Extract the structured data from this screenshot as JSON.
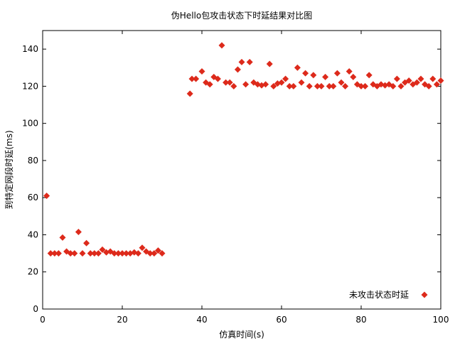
{
  "chart_data": {
    "type": "scatter",
    "title": "伪Hello包攻击状态下时延结果对比图",
    "xlabel": "仿真时间(s)",
    "ylabel": "到特定网段时延(ms)",
    "xlim": [
      0,
      100
    ],
    "ylim": [
      0,
      150
    ],
    "xticks": [
      0,
      20,
      40,
      60,
      80,
      100
    ],
    "yticks": [
      0,
      20,
      40,
      60,
      80,
      100,
      120,
      140
    ],
    "grid": false,
    "legend_position": "bottom-right",
    "series": [
      {
        "name": "未攻击状态时延",
        "color": "#dd2a1b",
        "marker": "diamond",
        "points": [
          [
            1,
            61
          ],
          [
            2,
            30
          ],
          [
            3,
            30
          ],
          [
            4,
            30
          ],
          [
            5,
            38.5
          ],
          [
            6,
            31
          ],
          [
            7,
            30
          ],
          [
            8,
            30
          ],
          [
            9,
            41.5
          ],
          [
            10,
            30
          ],
          [
            11,
            35.5
          ],
          [
            12,
            30
          ],
          [
            13,
            30
          ],
          [
            14,
            30
          ],
          [
            15,
            32
          ],
          [
            16,
            30.5
          ],
          [
            17,
            31
          ],
          [
            18,
            30
          ],
          [
            19,
            30
          ],
          [
            20,
            30
          ],
          [
            21,
            30
          ],
          [
            22,
            30
          ],
          [
            23,
            30.5
          ],
          [
            24,
            30
          ],
          [
            25,
            33
          ],
          [
            26,
            31
          ],
          [
            27,
            30
          ],
          [
            28,
            30
          ],
          [
            29,
            31.5
          ],
          [
            30,
            30
          ],
          [
            37,
            116
          ],
          [
            37.5,
            124
          ],
          [
            38.5,
            124
          ],
          [
            40,
            128
          ],
          [
            41,
            122
          ],
          [
            42,
            121
          ],
          [
            43,
            125
          ],
          [
            44,
            124
          ],
          [
            45,
            142
          ],
          [
            46,
            122
          ],
          [
            47,
            122
          ],
          [
            48,
            120
          ],
          [
            49,
            129
          ],
          [
            50,
            133
          ],
          [
            51,
            121
          ],
          [
            52,
            133
          ],
          [
            53,
            122
          ],
          [
            54,
            121
          ],
          [
            55,
            120.5
          ],
          [
            56,
            121
          ],
          [
            57,
            132
          ],
          [
            58,
            120
          ],
          [
            59,
            121.5
          ],
          [
            60,
            122
          ],
          [
            61,
            124
          ],
          [
            62,
            120
          ],
          [
            63,
            120
          ],
          [
            64,
            130
          ],
          [
            65,
            122
          ],
          [
            66,
            127
          ],
          [
            67,
            120
          ],
          [
            68,
            126
          ],
          [
            69,
            120
          ],
          [
            70,
            120
          ],
          [
            71,
            125
          ],
          [
            72,
            120
          ],
          [
            73,
            120
          ],
          [
            74,
            127
          ],
          [
            75,
            122
          ],
          [
            76,
            120
          ],
          [
            77,
            128
          ],
          [
            78,
            125
          ],
          [
            79,
            121
          ],
          [
            80,
            120
          ],
          [
            81,
            120
          ],
          [
            82,
            126
          ],
          [
            83,
            121
          ],
          [
            84,
            120
          ],
          [
            85,
            121
          ],
          [
            86,
            120.5
          ],
          [
            87,
            121
          ],
          [
            88,
            120
          ],
          [
            89,
            124
          ],
          [
            90,
            120
          ],
          [
            91,
            122
          ],
          [
            92,
            123
          ],
          [
            93,
            121
          ],
          [
            94,
            122
          ],
          [
            95,
            124
          ],
          [
            96,
            121
          ],
          [
            97,
            120
          ],
          [
            98,
            124
          ],
          [
            99,
            121
          ],
          [
            100,
            123
          ]
        ]
      }
    ]
  }
}
